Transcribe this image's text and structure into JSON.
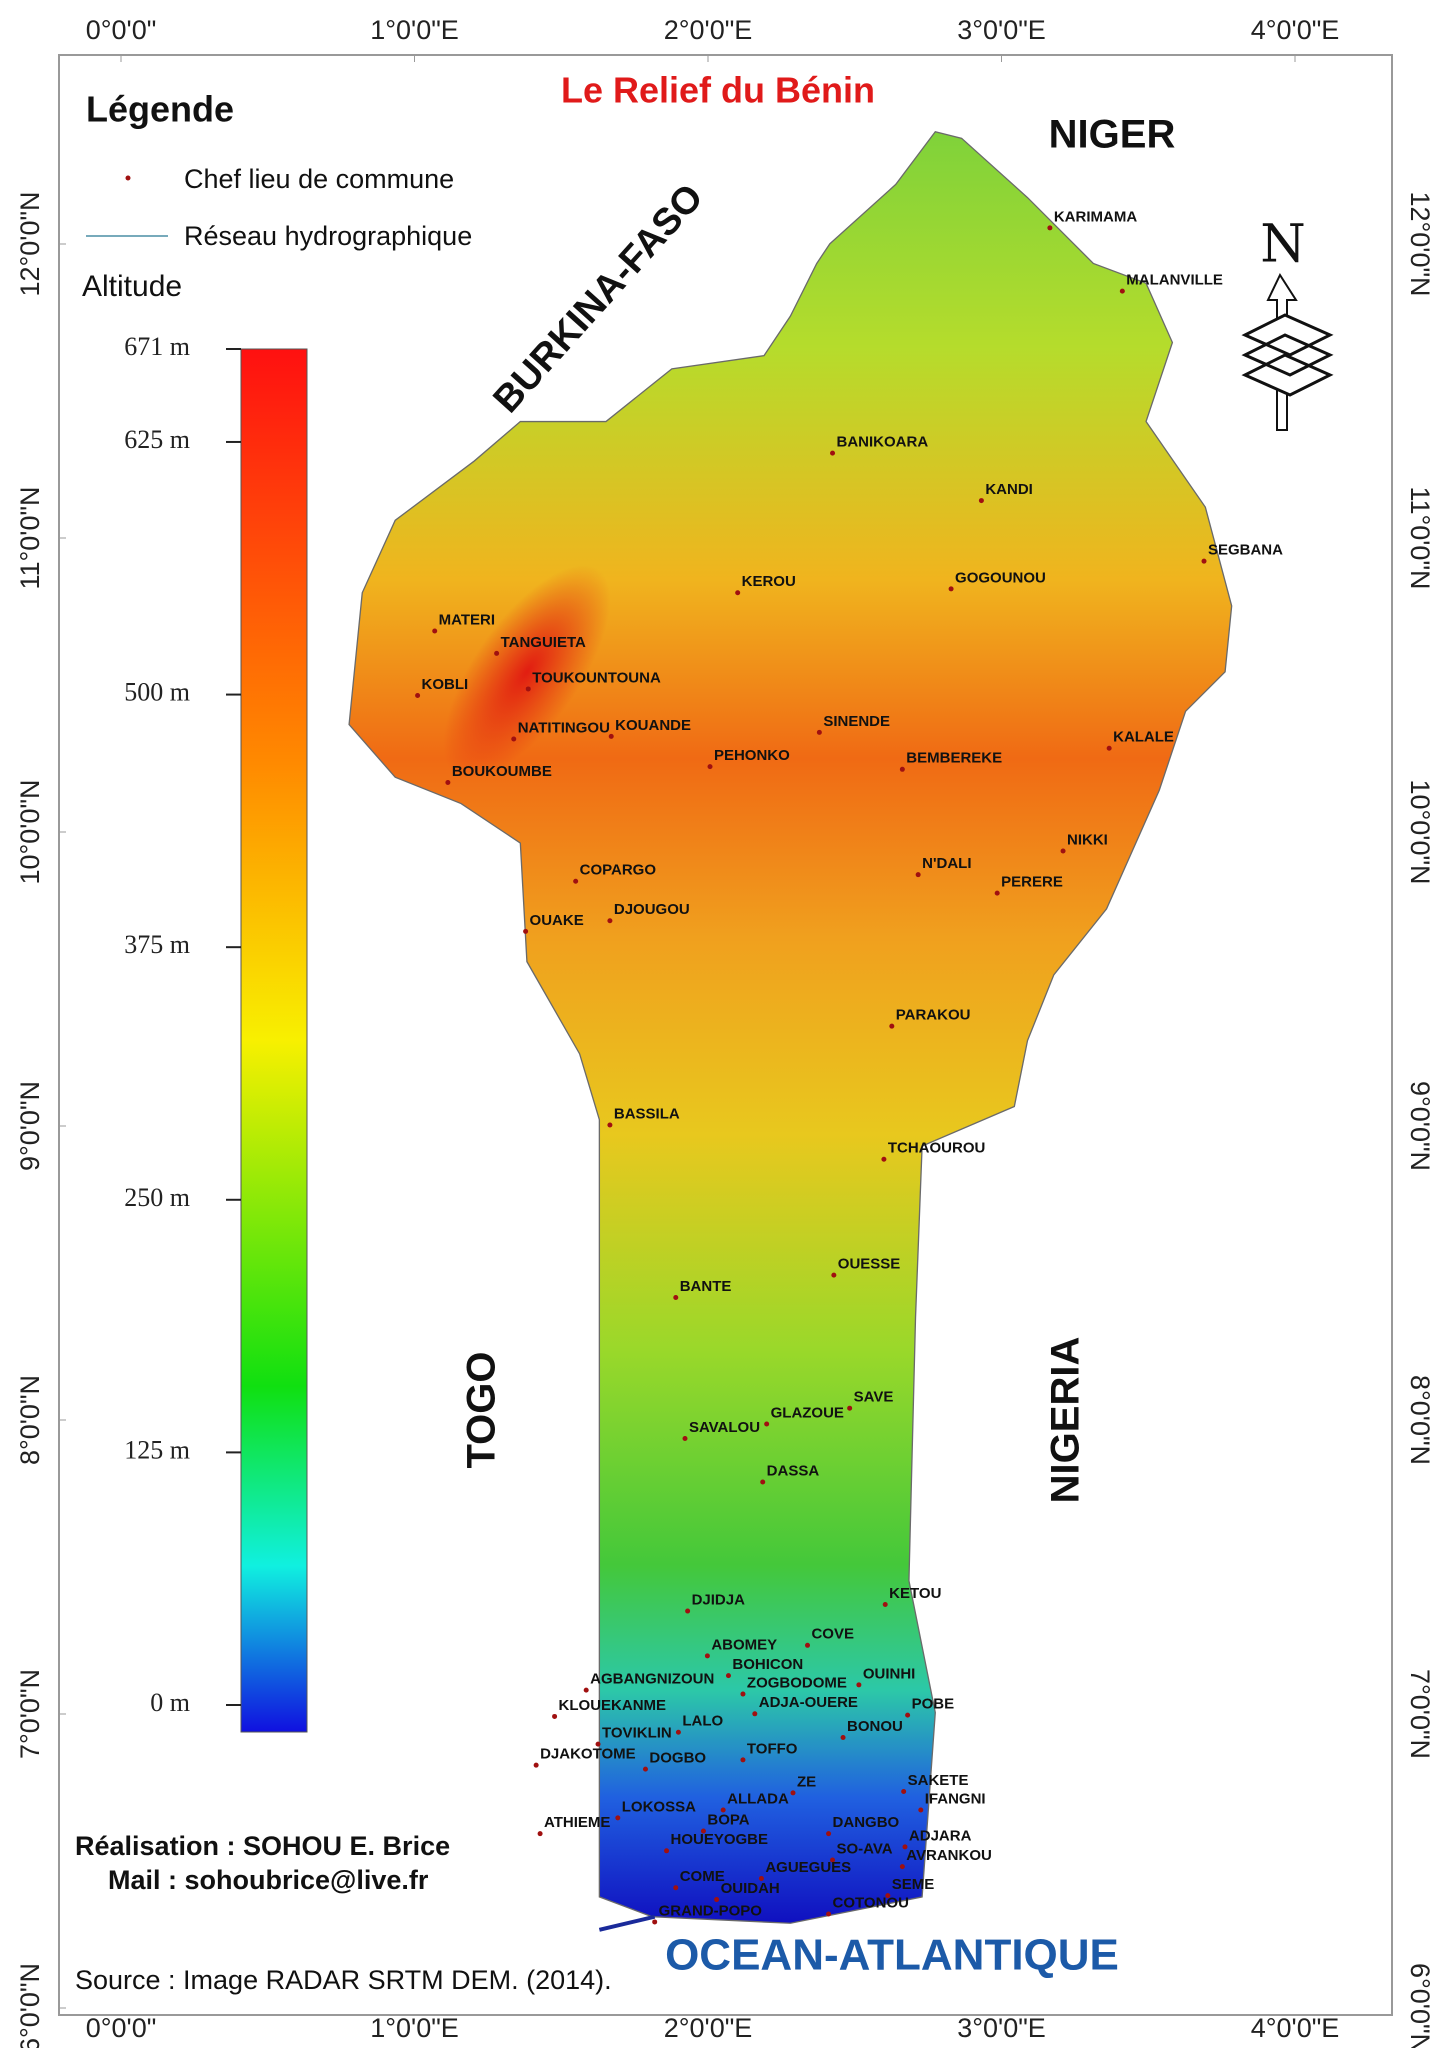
{
  "title": "Le Relief du Bénin",
  "legend": {
    "heading": "Légende",
    "items": [
      "Chef lieu de commune",
      "Réseau hydrographique"
    ],
    "altitude_title": "Altitude",
    "altitude_ticks": [
      {
        "value": 671,
        "label": "671 m"
      },
      {
        "value": 625,
        "label": "625 m"
      },
      {
        "value": 500,
        "label": "500 m"
      },
      {
        "value": 375,
        "label": "375 m"
      },
      {
        "value": 250,
        "label": "250 m"
      },
      {
        "value": 125,
        "label": "125 m"
      },
      {
        "value": 0,
        "label": "0 m"
      }
    ]
  },
  "graticule": {
    "longitude": [
      {
        "value": 0,
        "label": "0°0'0\""
      },
      {
        "value": 1,
        "label": "1°0'0\"E"
      },
      {
        "value": 2,
        "label": "2°0'0\"E"
      },
      {
        "value": 3,
        "label": "3°0'0\"E"
      },
      {
        "value": 4,
        "label": "4°0'0\"E"
      }
    ],
    "latitude": [
      {
        "value": 12,
        "label": "12°0'0\"N"
      },
      {
        "value": 11,
        "label": "11°0'0\"N"
      },
      {
        "value": 10,
        "label": "10°0'0\"N"
      },
      {
        "value": 9,
        "label": "9°0'0\"N"
      },
      {
        "value": 8,
        "label": "8°0'0\"N"
      },
      {
        "value": 7,
        "label": "7°0'0\"N"
      },
      {
        "value": 6,
        "label": "6°0'0\"N"
      }
    ]
  },
  "regions": {
    "niger": "NIGER",
    "burkina_faso": "BURKINA-FASO",
    "togo": "TOGO",
    "nigeria": "NIGERIA",
    "ocean": "OCEAN-ATLANTIQUE"
  },
  "north_arrow": "N",
  "towns": [
    "KARIMAMA",
    "MALANVILLE",
    "BANIKOARA",
    "KANDI",
    "SEGBANA",
    "KEROU",
    "GOGOUNOU",
    "MATERI",
    "TANGUIETA",
    "KOBLI",
    "TOUKOUNTOUNA",
    "NATITINGOU",
    "KOUANDE",
    "SINENDE",
    "PEHONKO",
    "BEMBEREKE",
    "KALALE",
    "BOUKOUMBE",
    "NIKKI",
    "N'DALI",
    "PERERE",
    "COPARGO",
    "DJOUGOU",
    "OUAKE",
    "PARAKOU",
    "BASSILA",
    "TCHAOUROU",
    "OUESSE",
    "BANTE",
    "SAVE",
    "GLAZOUE",
    "SAVALOU",
    "DASSA",
    "KETOU",
    "DJIDJA",
    "ABOMEY",
    "COVE",
    "BOHICON",
    "AGBANGNIZOUN",
    "ZOGBODOME",
    "OUINHI",
    "ADJA-OUERE",
    "KLOUEKANME",
    "POBE",
    "LALO",
    "BONOU",
    "TOVIKLIN",
    "TOFFO",
    "DJAKOTOME",
    "DOGBO",
    "ZE",
    "SAKETE",
    "IFANGNI",
    "ALLADA",
    "LOKOSSA",
    "ATHIEME",
    "BOPA",
    "DANGBO",
    "HOUEYOGBE",
    "ADJARA",
    "SO-AVA",
    "AVRANKOU",
    "COME",
    "AGUEGUES",
    "SEME",
    "OUIDAH",
    "COTONOU",
    "GRAND-POPO"
  ],
  "credits": {
    "author": "Réalisation : SOHOU E. Brice",
    "mail": "Mail : sohoubrice@live.fr",
    "source": "Source : Image RADAR SRTM DEM. (2014)."
  }
}
